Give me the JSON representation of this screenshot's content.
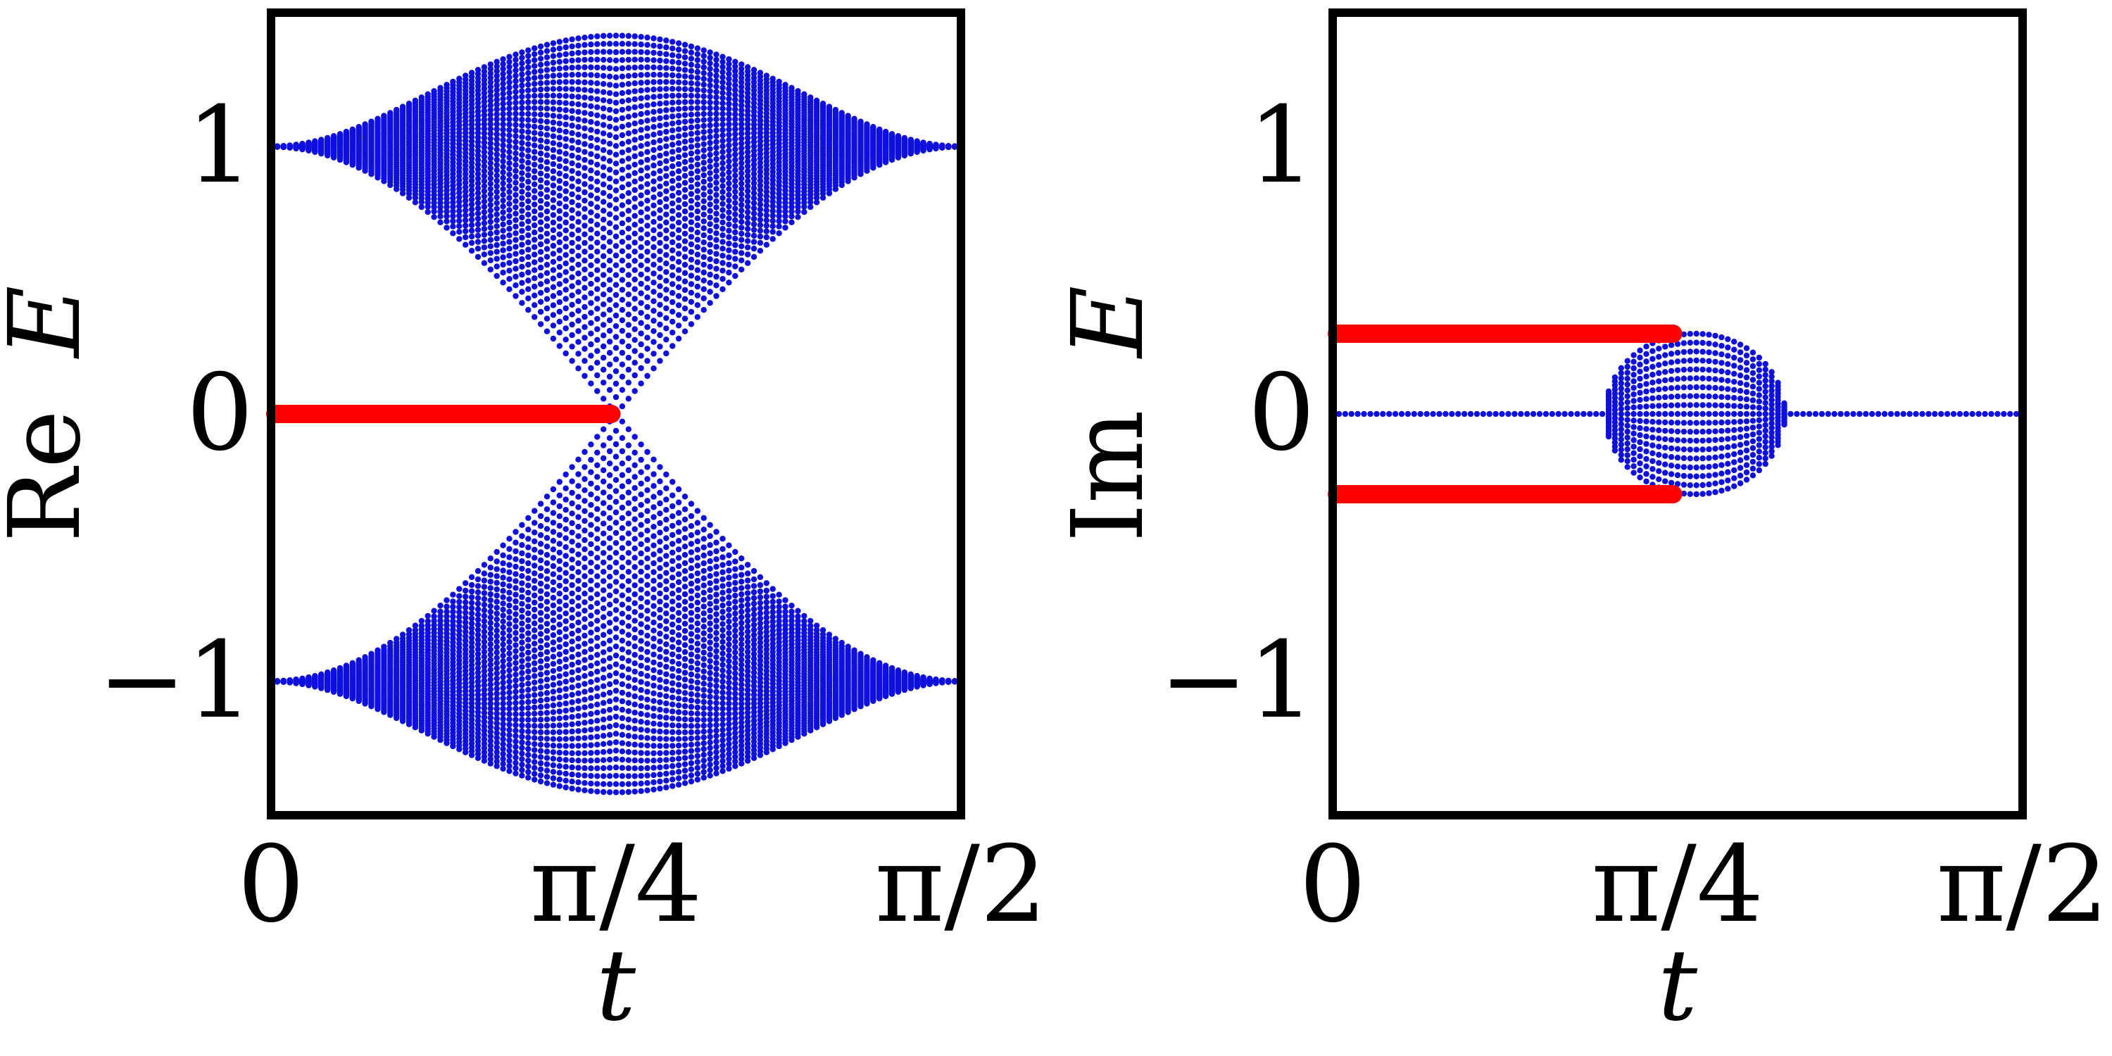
{
  "chart_data": [
    {
      "type": "scatter",
      "title": "",
      "xlabel": "t",
      "ylabel": "Re E",
      "ylabel_prefix": "Re",
      "ylabel_var": "E",
      "xlim": [
        0,
        1.5708
      ],
      "ylim": [
        -1.5,
        1.5
      ],
      "xticks": [
        {
          "value": 0,
          "label": "0"
        },
        {
          "value": 0.7854,
          "label": "π/4"
        },
        {
          "value": 1.5708,
          "label": "π/2"
        }
      ],
      "yticks": [
        {
          "value": -1,
          "label": "−1"
        },
        {
          "value": 0,
          "label": "0"
        },
        {
          "value": 1,
          "label": "1"
        }
      ],
      "grid": false,
      "series": [
        {
          "color": "#1010dd",
          "kind": "points",
          "x_range": [
            0,
            1.5708
          ],
          "band": "real"
        },
        {
          "color": "#ff0000",
          "kind": "thick-line",
          "x": [
            0,
            0.775
          ],
          "y": [
            0,
            0
          ]
        }
      ]
    },
    {
      "type": "scatter",
      "title": "",
      "xlabel": "t",
      "ylabel": "Im E",
      "ylabel_prefix": "Im",
      "ylabel_var": "E",
      "xlim": [
        0,
        1.5708
      ],
      "ylim": [
        -1.5,
        1.5
      ],
      "xticks": [
        {
          "value": 0,
          "label": "0"
        },
        {
          "value": 0.7854,
          "label": "π/4"
        },
        {
          "value": 1.5708,
          "label": "π/2"
        }
      ],
      "yticks": [
        {
          "value": -1,
          "label": "−1"
        },
        {
          "value": 0,
          "label": "0"
        },
        {
          "value": 1,
          "label": "1"
        }
      ],
      "grid": false,
      "series": [
        {
          "color": "#1010dd",
          "kind": "points",
          "x_range": [
            0,
            1.5708
          ],
          "band": "imag"
        },
        {
          "color": "#ff0000",
          "kind": "thick-line",
          "x": [
            0,
            0.775
          ],
          "y": [
            0.3,
            0.3
          ]
        },
        {
          "color": "#ff0000",
          "kind": "thick-line",
          "x": [
            0,
            0.775
          ],
          "y": [
            -0.3,
            -0.3
          ]
        }
      ]
    }
  ]
}
